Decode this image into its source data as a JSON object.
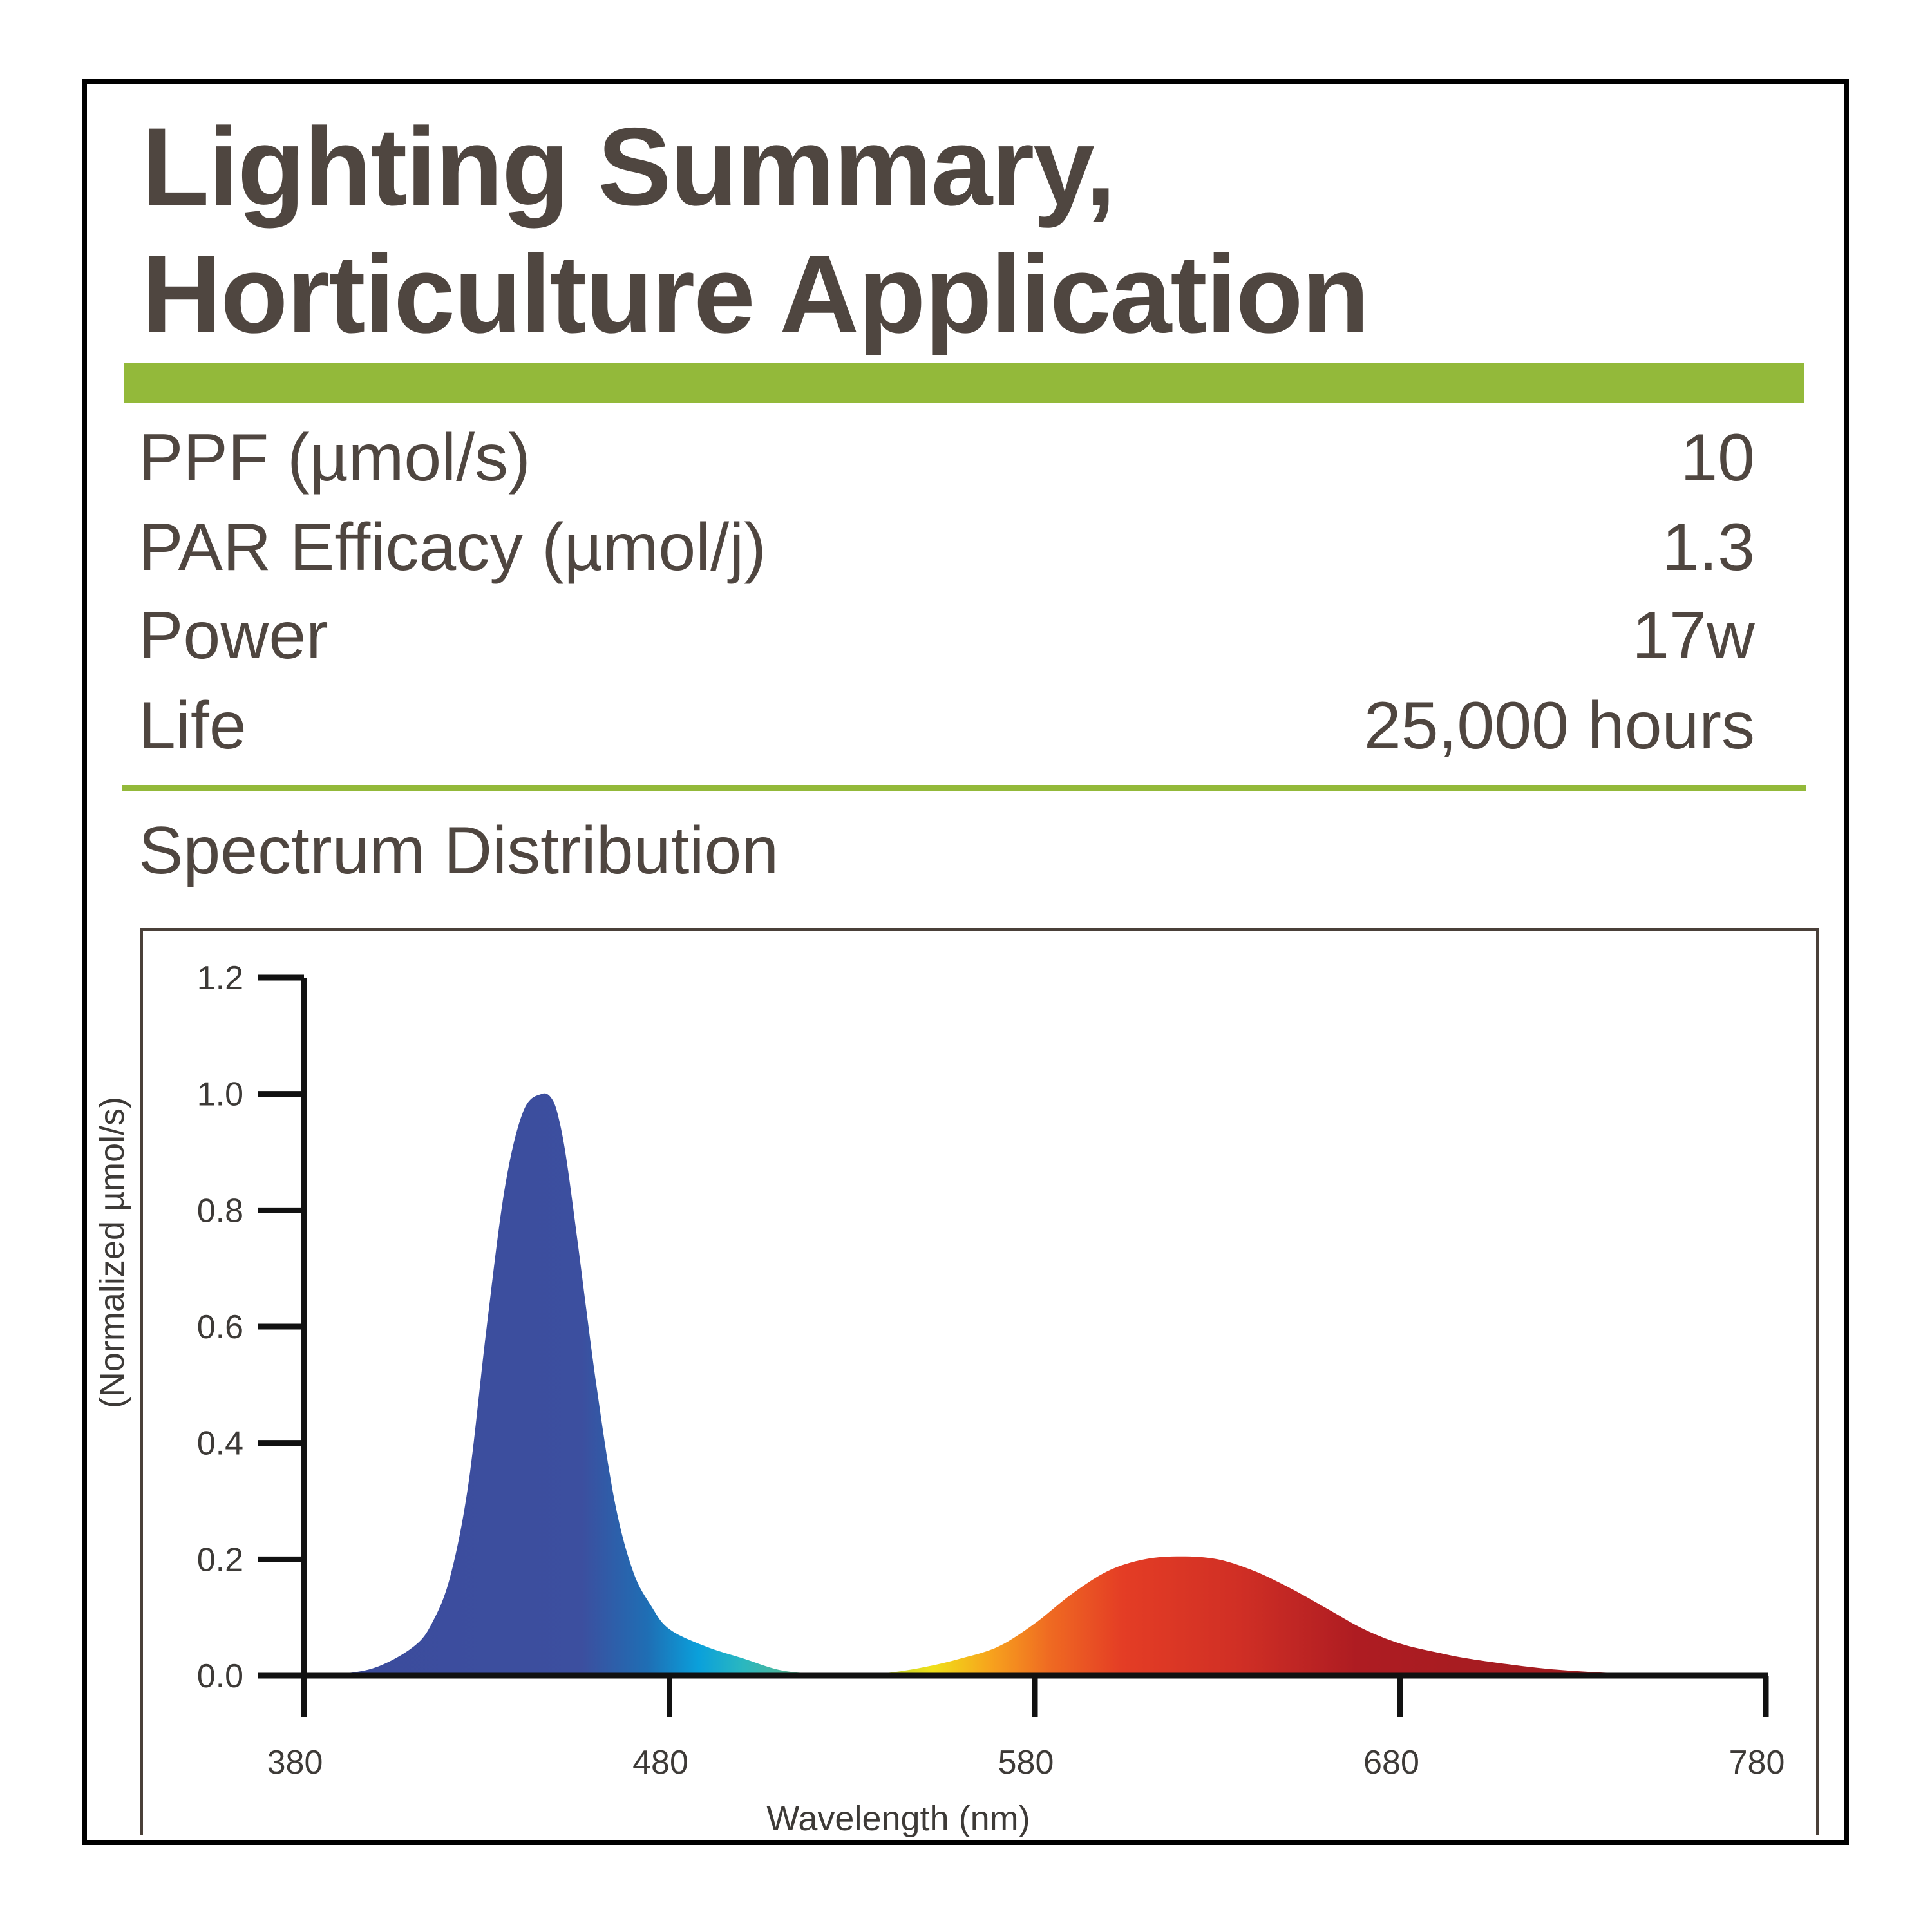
{
  "header": {
    "title_line1": "Lighting Summary,",
    "title_line2": "Horticulture Application"
  },
  "specs": [
    {
      "label": "PPF (µmol/s)",
      "value": "10"
    },
    {
      "label": "PAR Efficacy (µmol/j)",
      "value": "1.3"
    },
    {
      "label": "Power",
      "value": "17w"
    },
    {
      "label": "Life",
      "value": "25,000 hours"
    }
  ],
  "section_title": "Spectrum Distribution",
  "colors": {
    "accent_green": "#93b93a",
    "title_text": "#4f4640",
    "axis": "#111111"
  },
  "chart_data": {
    "type": "area",
    "xlabel": "Wavelength (nm)",
    "ylabel": "(Normalized µmol/s)",
    "xlim": [
      380,
      780
    ],
    "ylim": [
      0,
      1.2
    ],
    "x_ticks": [
      "380",
      "480",
      "580",
      "680",
      "780"
    ],
    "y_ticks": [
      "0.0",
      "0.2",
      "0.4",
      "0.6",
      "0.8",
      "1.0",
      "1.2"
    ],
    "grid": false,
    "series": [
      {
        "x": [
          380,
          390,
          400,
          410,
          415,
          420,
          425,
          430,
          435,
          440,
          445,
          448,
          450,
          452,
          455,
          460,
          465,
          470,
          475,
          480,
          490,
          500,
          510,
          520,
          530,
          540,
          550,
          560,
          570,
          580,
          590,
          600,
          610,
          620,
          630,
          640,
          650,
          660,
          670,
          680,
          690,
          700,
          720,
          740,
          760,
          780
        ],
        "values": [
          0.0,
          0.003,
          0.015,
          0.05,
          0.09,
          0.17,
          0.33,
          0.6,
          0.84,
          0.97,
          1.0,
          0.99,
          0.95,
          0.88,
          0.74,
          0.5,
          0.3,
          0.18,
          0.12,
          0.08,
          0.05,
          0.03,
          0.01,
          0.003,
          0.001,
          0.005,
          0.015,
          0.03,
          0.05,
          0.09,
          0.14,
          0.18,
          0.2,
          0.205,
          0.2,
          0.18,
          0.15,
          0.115,
          0.08,
          0.055,
          0.04,
          0.028,
          0.012,
          0.004,
          0.001,
          0.0
        ]
      }
    ]
  }
}
